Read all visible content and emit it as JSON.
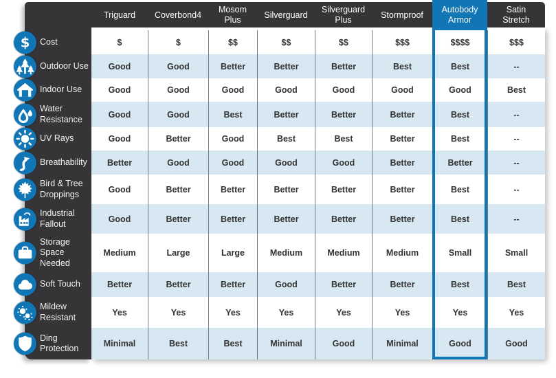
{
  "colors": {
    "accent_blue": "#1176b5",
    "panel_dark": "#363436",
    "row_stripe": "#d8e8f3",
    "grid_line": "#6e7b85",
    "cell_text": "#333333",
    "header_text": "#ffffff"
  },
  "chart_data": {
    "type": "table",
    "columns": [
      "Triguard",
      "Coverbond4",
      "Mosom Plus",
      "Silverguard",
      "Silverguard Plus",
      "Stormproof",
      "Autobody Armor",
      "Satin Stretch"
    ],
    "highlighted_column": "Autobody Armor",
    "highlight_index": 6,
    "rows": [
      {
        "label": "Cost",
        "icon": "dollar-icon",
        "values": [
          "$",
          "$",
          "$$",
          "$$",
          "$$",
          "$$$",
          "$$$$",
          "$$$"
        ]
      },
      {
        "label": "Outdoor Use",
        "icon": "trees-icon",
        "values": [
          "Good",
          "Good",
          "Better",
          "Better",
          "Better",
          "Best",
          "Best",
          "--"
        ]
      },
      {
        "label": "Indoor Use",
        "icon": "house-icon",
        "values": [
          "Good",
          "Good",
          "Good",
          "Good",
          "Good",
          "Good",
          "Good",
          "Best"
        ]
      },
      {
        "label": "Water Resistance",
        "icon": "water-drops-icon",
        "values": [
          "Good",
          "Good",
          "Best",
          "Better",
          "Better",
          "Better",
          "Best",
          "--"
        ]
      },
      {
        "label": "UV Rays",
        "icon": "sun-icon",
        "values": [
          "Good",
          "Better",
          "Good",
          "Best",
          "Best",
          "Better",
          "Best",
          "--"
        ]
      },
      {
        "label": "Breathability",
        "icon": "airflow-icon",
        "values": [
          "Better",
          "Good",
          "Good",
          "Good",
          "Good",
          "Better",
          "Better",
          "--"
        ]
      },
      {
        "label": "Bird & Tree Droppings",
        "icon": "maple-leaf-icon",
        "values": [
          "Good",
          "Better",
          "Better",
          "Better",
          "Better",
          "Better",
          "Best",
          "--"
        ]
      },
      {
        "label": "Industrial Fallout",
        "icon": "factory-icon",
        "values": [
          "Good",
          "Better",
          "Better",
          "Better",
          "Better",
          "Better",
          "Best",
          "--"
        ]
      },
      {
        "label": "Storage Space Needed",
        "icon": "suitcase-icon",
        "values": [
          "Medium",
          "Large",
          "Large",
          "Medium",
          "Medium",
          "Medium",
          "Small",
          "Small"
        ]
      },
      {
        "label": "Soft Touch",
        "icon": "cloud-icon",
        "values": [
          "Better",
          "Better",
          "Better",
          "Good",
          "Better",
          "Better",
          "Best",
          "Best"
        ]
      },
      {
        "label": "Mildew Resistant",
        "icon": "mildew-spores-icon",
        "values": [
          "Yes",
          "Yes",
          "Yes",
          "Yes",
          "Yes",
          "Yes",
          "Yes",
          "Yes"
        ]
      },
      {
        "label": "Ding Protection",
        "icon": "shield-icon",
        "values": [
          "Minimal",
          "Best",
          "Best",
          "Minimal",
          "Good",
          "Minimal",
          "Good",
          "Good"
        ]
      }
    ]
  }
}
